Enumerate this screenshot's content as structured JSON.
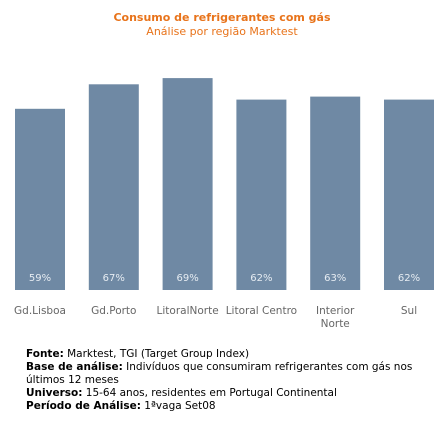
{
  "chart_data": {
    "type": "bar",
    "title": "Consumo de refrigerantes com gás",
    "subtitle": "Análise por região Marktest",
    "categories": [
      "Gd.Lisboa",
      "Gd.Porto",
      "LitoralNorte",
      "Litoral Centro",
      "Interior Norte",
      "Sul"
    ],
    "values": [
      59,
      67,
      69,
      62,
      63,
      62
    ],
    "value_labels": [
      "59%",
      "67%",
      "69%",
      "62%",
      "63%",
      "62%"
    ],
    "value_unit": "%",
    "ylim": [
      0,
      71
    ],
    "grid": false,
    "legend": "none",
    "bar_color": "#6f89a4",
    "label_color": "#e6ecf2"
  },
  "notes": {
    "source_label": "Fonte:",
    "source_text": " Marktest, TGI (Target Group Index)",
    "base_label": "Base de análise:",
    "base_text": " Indivíduos que consumiram refrigerantes com gás nos últimos 12 meses",
    "universe_label": "Universo:",
    "universe_text": " 15-64 anos, residentes em Portugal Continental",
    "period_label": "Período de Análise:",
    "period_text": " 1ªvaga Set08"
  },
  "colors": {
    "title": "#e8731a",
    "axis_text": "#666666"
  }
}
